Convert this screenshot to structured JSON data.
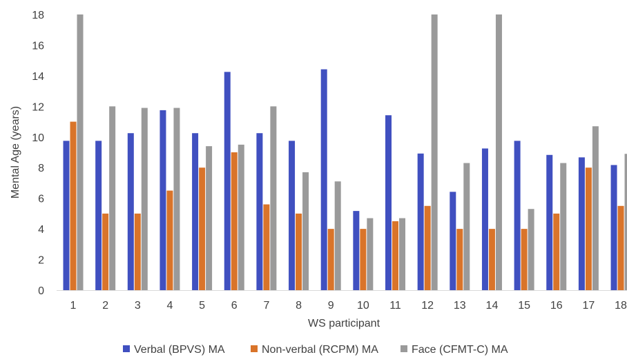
{
  "chart_data": {
    "type": "bar",
    "title": "",
    "xlabel": "WS participant",
    "ylabel": "Mental Age (years)",
    "ylim": [
      0,
      18
    ],
    "yticks": [
      0,
      2,
      4,
      6,
      8,
      10,
      12,
      14,
      16,
      18
    ],
    "grid": false,
    "legend_position": "bottom",
    "categories": [
      "1",
      "2",
      "3",
      "4",
      "5",
      "6",
      "7",
      "8",
      "9",
      "10",
      "11",
      "12",
      "13",
      "14",
      "15",
      "16",
      "17",
      "18"
    ],
    "series": [
      {
        "name": "Verbal (BPVS) MA",
        "color": "#4050C0",
        "values": [
          9.75,
          9.75,
          10.25,
          11.75,
          10.25,
          14.25,
          10.25,
          9.75,
          14.42,
          5.17,
          11.42,
          8.92,
          6.42,
          9.25,
          9.75,
          8.83,
          8.67,
          8.17
        ]
      },
      {
        "name": "Non-verbal (RCPM) MA",
        "color": "#D9742A",
        "values": [
          11.0,
          5.0,
          5.0,
          6.5,
          8.0,
          9.0,
          5.6,
          5.0,
          4.0,
          4.0,
          4.5,
          5.5,
          4.0,
          4.0,
          4.0,
          5.0,
          8.0,
          5.5
        ]
      },
      {
        "name": "Face (CFMT-C) MA",
        "color": "#9A9A9A",
        "values": [
          18.0,
          12.0,
          11.9,
          11.9,
          9.4,
          9.5,
          12.0,
          7.7,
          7.1,
          4.7,
          4.7,
          18.0,
          8.3,
          18.0,
          5.3,
          8.3,
          10.7,
          8.9
        ]
      }
    ]
  }
}
